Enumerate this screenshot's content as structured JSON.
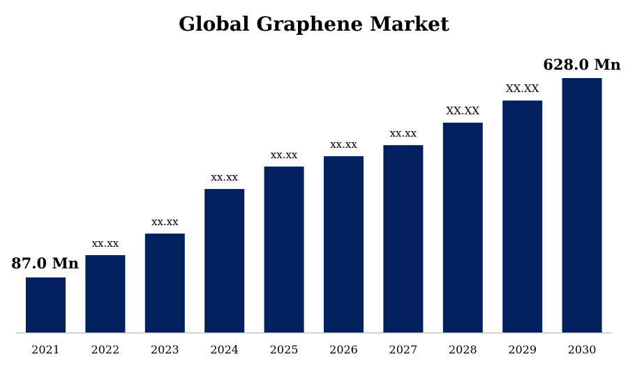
{
  "chart_data": {
    "type": "bar",
    "title": "Global Graphene Market",
    "xlabel": "",
    "ylabel": "",
    "categories": [
      "2021",
      "2022",
      "2023",
      "2024",
      "2025",
      "2026",
      "2027",
      "2028",
      "2029",
      "2030"
    ],
    "values": [
      87.0,
      147.5,
      206,
      327,
      388,
      416,
      446,
      507,
      567,
      628.0
    ],
    "data_labels": [
      "87.0 Mn",
      "xx.xx",
      "xx.xx",
      "xx.xx",
      "xx.xx",
      "xx.xx",
      "xx.xx",
      "XX.XX",
      "XX.XX",
      "628.0 Mn"
    ],
    "grid": false,
    "legend": "none",
    "bar_color": "#02205e",
    "axis_color": "#d0d0d0"
  }
}
